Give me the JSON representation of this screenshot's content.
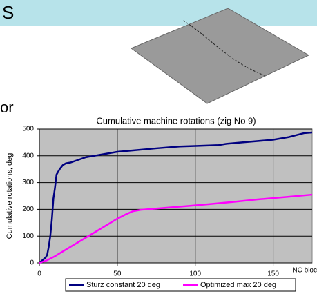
{
  "slide": {
    "heading": "S",
    "text": "or"
  },
  "chart_data": {
    "type": "line",
    "title": "Cumulative machine rotations (zig No 9)",
    "y_label": "Cumulative rotations, deg",
    "x_label": "NC bloc",
    "xlim": [
      0,
      175
    ],
    "xticks": [
      0,
      50,
      100,
      150
    ],
    "ylim": [
      0,
      500
    ],
    "yticks": [
      0,
      100,
      200,
      300,
      400,
      500
    ],
    "grid": true,
    "legend": "bottom",
    "series": [
      {
        "name": "Sturz constant 20 deg",
        "color": "#000080",
        "x": [
          0,
          2,
          4,
          5,
          6,
          7,
          8,
          9,
          10,
          11,
          13,
          15,
          17,
          20,
          25,
          30,
          40,
          50,
          60,
          75,
          90,
          100,
          115,
          120,
          130,
          150,
          160,
          170,
          175
        ],
        "values": [
          0,
          10,
          20,
          30,
          60,
          100,
          160,
          240,
          280,
          330,
          350,
          365,
          372,
          375,
          385,
          395,
          405,
          415,
          420,
          428,
          435,
          437,
          440,
          445,
          450,
          460,
          470,
          485,
          487
        ]
      },
      {
        "name": "Optimized max 20 deg",
        "color": "#ff00ff",
        "x": [
          0,
          5,
          10,
          20,
          30,
          40,
          50,
          55,
          60,
          65,
          75,
          90,
          100,
          110,
          125,
          140,
          160,
          175
        ],
        "values": [
          0,
          10,
          25,
          60,
          95,
          130,
          165,
          180,
          193,
          198,
          203,
          210,
          215,
          220,
          228,
          237,
          247,
          255
        ]
      }
    ]
  }
}
